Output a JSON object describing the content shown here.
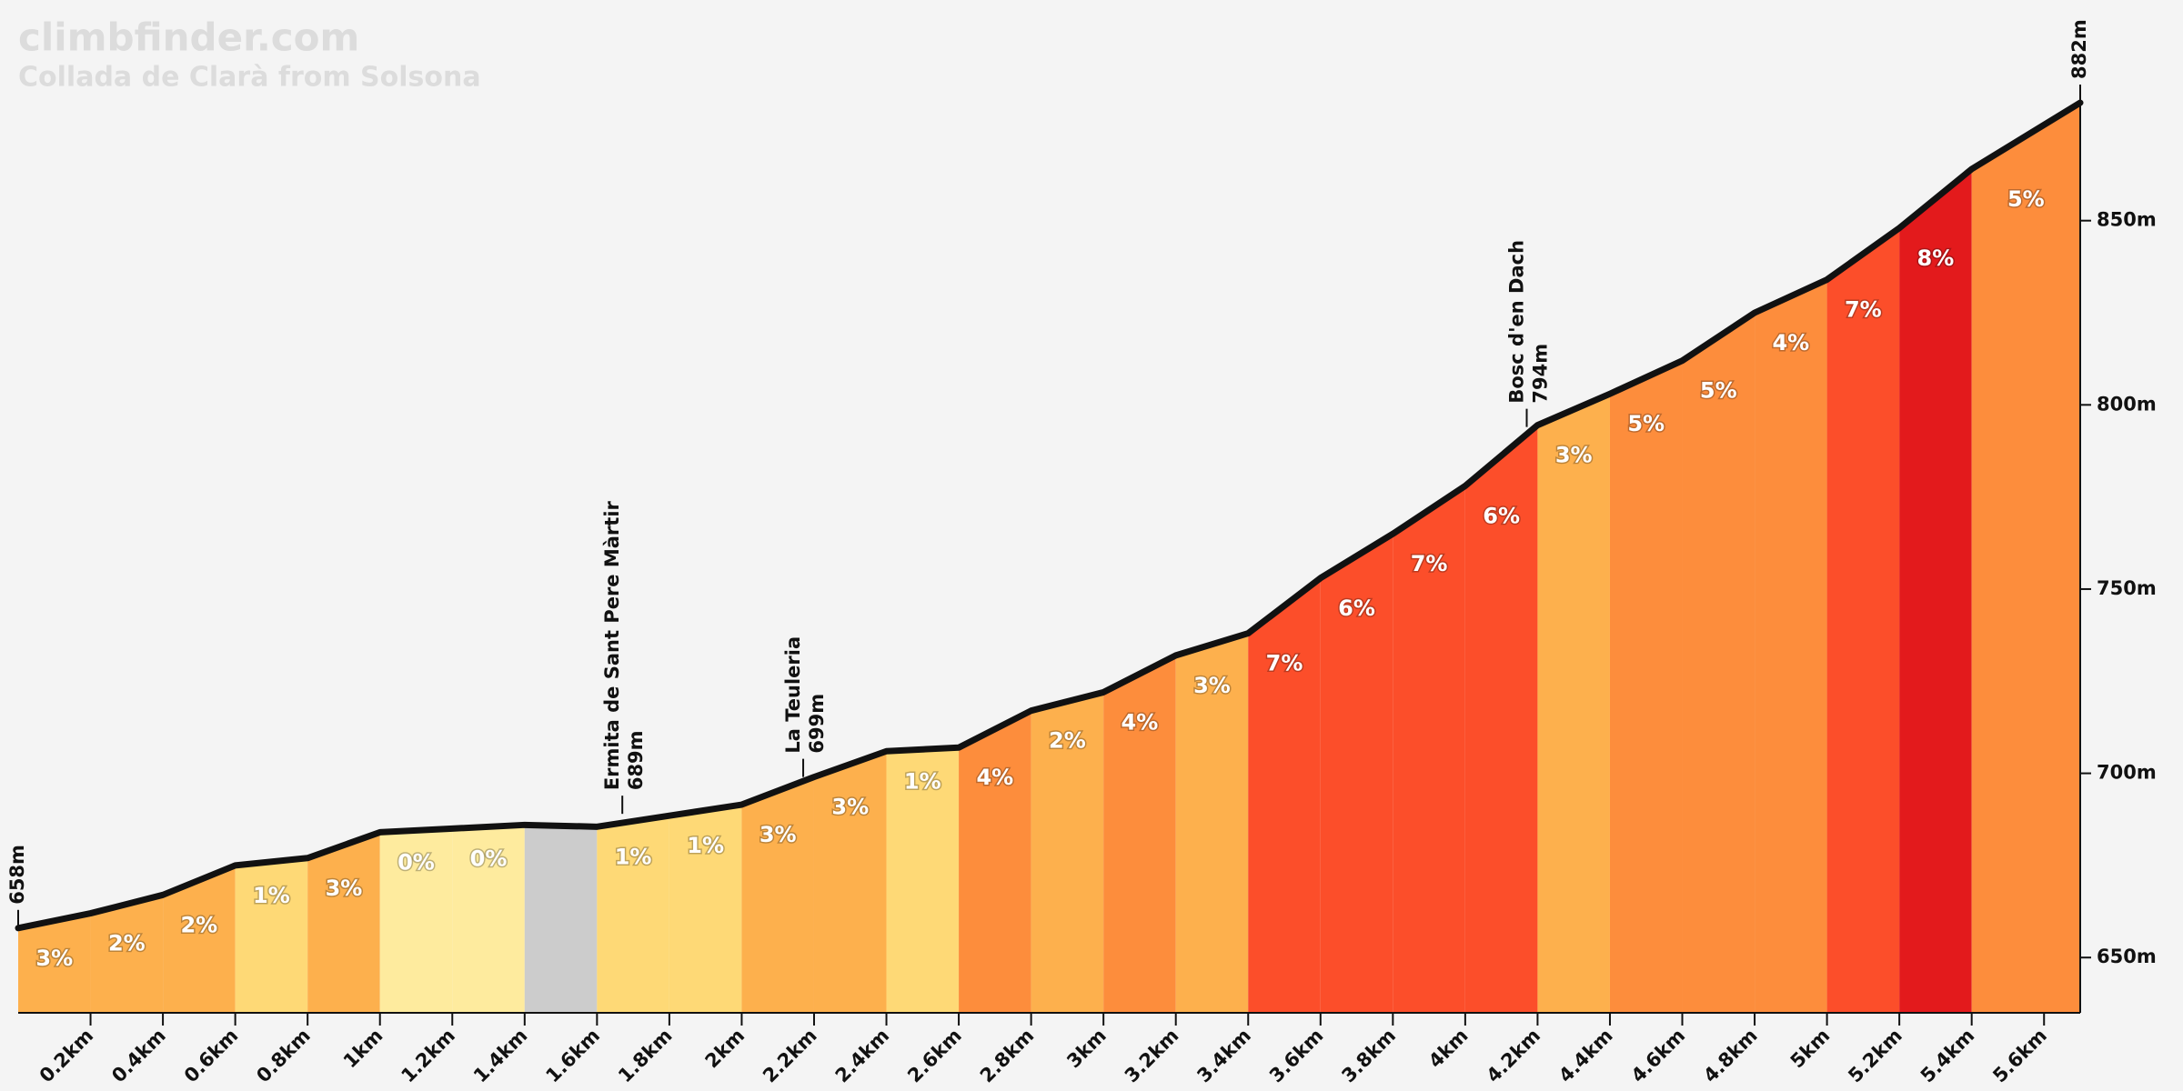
{
  "chart_data": {
    "type": "elevation-profile",
    "title": "climbfinder.com",
    "subtitle": "Collada de Clarà from Solsona",
    "x": [
      0,
      0.2,
      0.4,
      0.6,
      0.8,
      1.0,
      1.2,
      1.4,
      1.6,
      1.8,
      2.0,
      2.2,
      2.4,
      2.6,
      2.8,
      3.0,
      3.2,
      3.4,
      3.6,
      3.8,
      4.0,
      4.2,
      4.4,
      4.6,
      4.8,
      5.0,
      5.2,
      5.4,
      5.7
    ],
    "elevation": [
      658,
      662,
      667,
      675,
      677,
      684,
      685,
      686,
      685.5,
      688.5,
      691.5,
      699,
      706,
      707,
      717,
      722,
      732,
      738,
      753,
      765,
      778,
      794.5,
      803,
      812,
      825,
      834,
      848,
      864,
      882
    ],
    "segments": {
      "values": [
        3,
        2,
        2,
        1,
        3,
        0,
        0,
        null,
        1,
        1,
        3,
        3,
        1,
        4,
        2,
        4,
        3,
        7,
        6,
        7,
        6,
        3,
        5,
        5,
        4,
        7,
        8,
        5
      ],
      "value_labels": [
        "3%",
        "2%",
        "2%",
        "1%",
        "3%",
        "0%",
        "0%",
        null,
        "1%",
        "1%",
        "3%",
        "3%",
        "1%",
        "4%",
        "2%",
        "4%",
        "3%",
        "7%",
        "6%",
        "7%",
        "6%",
        "3%",
        "5%",
        "5%",
        "4%",
        "7%",
        "8%",
        "5%"
      ],
      "colors": [
        "#fdb04d",
        "#fdb04d",
        "#fdb04d",
        "#fed976",
        "#fdb04d",
        "#feeb9e",
        "#feeb9e",
        "#cccccc",
        "#fed976",
        "#fed976",
        "#fdb04d",
        "#fdb04d",
        "#fed976",
        "#fd8d3c",
        "#fdb04d",
        "#fd8d3c",
        "#fdb04d",
        "#fc4e2a",
        "#fc4e2a",
        "#fc4e2a",
        "#fc4e2a",
        "#fdb04d",
        "#fd8d3c",
        "#fd8d3c",
        "#fd8d3c",
        "#fc4e2a",
        "#e31a1c",
        "#fd8d3c"
      ]
    },
    "markers": {
      "names": [
        null,
        "Ermita de Sant Pere Màrtir",
        "La Teuleria",
        "Bosc d'en Dach",
        null
      ],
      "x": [
        0,
        1.67,
        2.17,
        4.17,
        5.7
      ],
      "values": [
        658,
        689,
        699,
        794,
        882
      ],
      "value_labels": [
        "658m",
        "689m",
        "699m",
        "794m",
        "882m"
      ]
    },
    "xlim": [
      0,
      5.7
    ],
    "ylim": [
      635,
      882
    ],
    "xticks": [
      {
        "value": 0.2,
        "label": "0.2km"
      },
      {
        "value": 0.4,
        "label": "0.4km"
      },
      {
        "value": 0.6,
        "label": "0.6km"
      },
      {
        "value": 0.8,
        "label": "0.8km"
      },
      {
        "value": 1,
        "label": "1km"
      },
      {
        "value": 1.2,
        "label": "1.2km"
      },
      {
        "value": 1.4,
        "label": "1.4km"
      },
      {
        "value": 1.6,
        "label": "1.6km"
      },
      {
        "value": 1.8,
        "label": "1.8km"
      },
      {
        "value": 2,
        "label": "2km"
      },
      {
        "value": 2.2,
        "label": "2.2km"
      },
      {
        "value": 2.4,
        "label": "2.4km"
      },
      {
        "value": 2.6,
        "label": "2.6km"
      },
      {
        "value": 2.8,
        "label": "2.8km"
      },
      {
        "value": 3,
        "label": "3km"
      },
      {
        "value": 3.2,
        "label": "3.2km"
      },
      {
        "value": 3.4,
        "label": "3.4km"
      },
      {
        "value": 3.6,
        "label": "3.6km"
      },
      {
        "value": 3.8,
        "label": "3.8km"
      },
      {
        "value": 4,
        "label": "4km"
      },
      {
        "value": 4.2,
        "label": "4.2km"
      },
      {
        "value": 4.4,
        "label": "4.4km"
      },
      {
        "value": 4.6,
        "label": "4.6km"
      },
      {
        "value": 4.8,
        "label": "4.8km"
      },
      {
        "value": 5,
        "label": "5km"
      },
      {
        "value": 5.2,
        "label": "5.2km"
      },
      {
        "value": 5.4,
        "label": "5.4km"
      },
      {
        "value": 5.6,
        "label": "5.6km"
      }
    ],
    "yticks": [
      {
        "value": 650,
        "label": "650m"
      },
      {
        "value": 700,
        "label": "700m"
      },
      {
        "value": 750,
        "label": "750m"
      },
      {
        "value": 800,
        "label": "800m"
      },
      {
        "value": 850,
        "label": "850m"
      }
    ]
  }
}
